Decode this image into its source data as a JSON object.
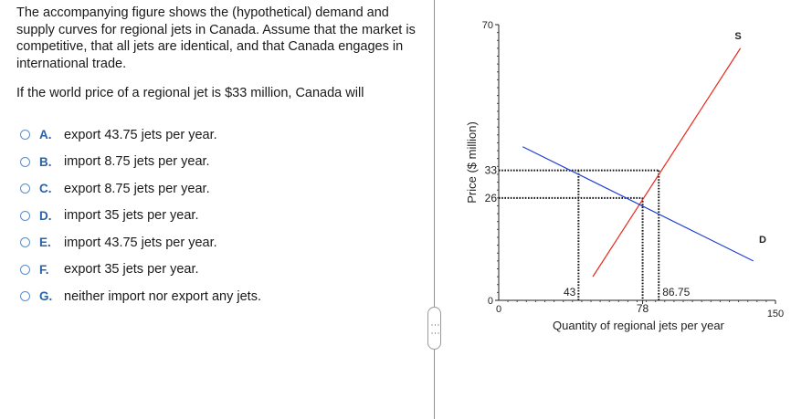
{
  "question": {
    "text": "The accompanying figure shows the (hypothetical) demand and supply curves for regional jets in Canada. Assume that the market is competitive, that all jets are identical, and that Canada engages in international trade.",
    "prompt": "If the world price of a regional jet is $33 million, Canada will"
  },
  "options": [
    {
      "letter": "A.",
      "text": "export 43.75 jets per year."
    },
    {
      "letter": "B.",
      "text": "import 8.75 jets per year."
    },
    {
      "letter": "C.",
      "text": "export 8.75 jets per year."
    },
    {
      "letter": "D.",
      "text": "import 35 jets per year."
    },
    {
      "letter": "E.",
      "text": "import 43.75 jets per year."
    },
    {
      "letter": "F.",
      "text": "export 35 jets per year."
    },
    {
      "letter": "G.",
      "text": "neither import nor export any jets."
    }
  ],
  "drag_handle": {
    "glyph": "⋮⋮"
  },
  "chart_data": {
    "type": "line",
    "title": "",
    "xlabel": "Quantity of regional jets per year",
    "ylabel": "Price ($ million)",
    "xlim": [
      0,
      150
    ],
    "ylim": [
      0,
      70
    ],
    "x_ticks": [
      "0",
      "150"
    ],
    "y_ticks": [
      "0",
      "70"
    ],
    "series": [
      {
        "name": "S",
        "color": "#e8291c",
        "points": [
          [
            51,
            6
          ],
          [
            131,
            64
          ]
        ]
      },
      {
        "name": "D",
        "color": "#1f3fd6",
        "points": [
          [
            13,
            39
          ],
          [
            138,
            10
          ]
        ]
      }
    ],
    "annotations": [
      {
        "label": "33",
        "axis": "y",
        "value": 33
      },
      {
        "label": "26",
        "axis": "y",
        "value": 26
      },
      {
        "label": "43",
        "axis": "x",
        "value": 43.25
      },
      {
        "label": "78",
        "axis": "x",
        "value": 78
      },
      {
        "label": "86.75",
        "axis": "x",
        "value": 86.75
      }
    ],
    "grid": false
  }
}
